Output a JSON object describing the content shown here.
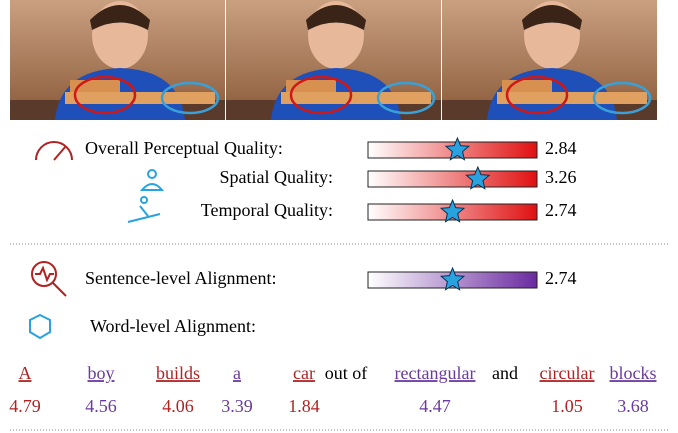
{
  "overall": {
    "label": "Overall Perceptual Quality:",
    "score": 2.84
  },
  "spatial": {
    "label": "Spatial Quality:",
    "score": 3.26
  },
  "temporal": {
    "label": "Temporal Quality:",
    "score": 2.74
  },
  "sentence": {
    "label": "Sentence-level Alignment:",
    "score": 2.74
  },
  "word_level": {
    "label": "Word-level Alignment:",
    "tokens": [
      {
        "text": "A",
        "score": 4.79,
        "color": "#b22222"
      },
      {
        "text": "boy",
        "score": 4.56,
        "color": "#6a3aa0"
      },
      {
        "text": "builds",
        "score": 4.06,
        "color": "#b22222"
      },
      {
        "text": "a",
        "score": 3.39,
        "color": "#6a3aa0"
      },
      {
        "text": "car",
        "score": 1.84,
        "color": "#b22222"
      },
      {
        "text": "out of",
        "score": null,
        "color": "#000000"
      },
      {
        "text": "rectangular",
        "score": 4.47,
        "color": "#6a3aa0"
      },
      {
        "text": "and",
        "score": null,
        "color": "#000000"
      },
      {
        "text": "circular",
        "score": 1.05,
        "color": "#b22222"
      },
      {
        "text": "blocks",
        "score": 3.68,
        "color": "#6a3aa0"
      }
    ]
  }
}
